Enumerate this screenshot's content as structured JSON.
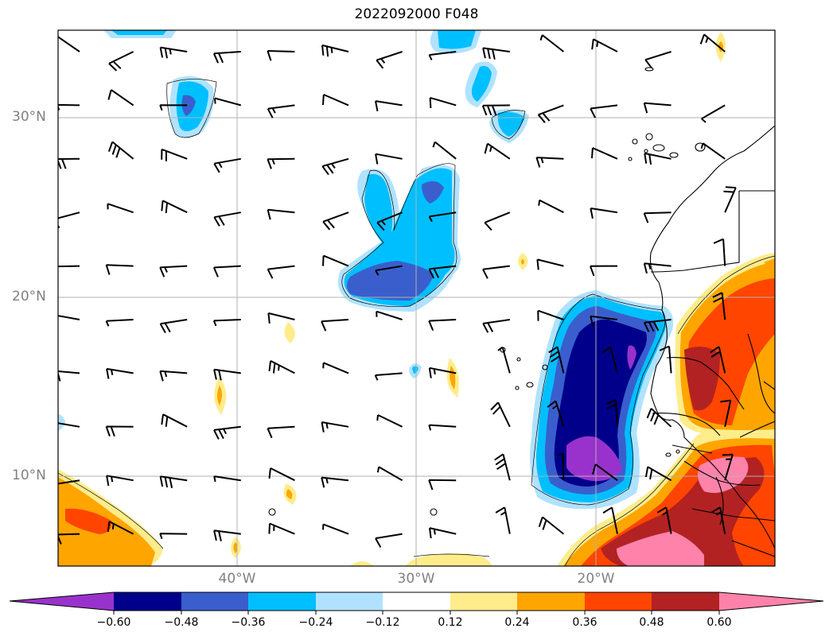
{
  "title": "2022092000 F048",
  "map": {
    "lat_ticks": [
      "30°N",
      "20°N",
      "10°N"
    ],
    "lon_ticks": [
      "40°W",
      "30°W",
      "20°W"
    ],
    "gridlines": true,
    "coastlines": true,
    "wind_barbs": true
  },
  "colorbar": {
    "labels": [
      "−0.60",
      "−0.48",
      "−0.36",
      "−0.24",
      "−0.12",
      "0.12",
      "0.24",
      "0.36",
      "0.48",
      "0.60"
    ],
    "colors": [
      "#9932cc",
      "#00008b",
      "#3a5fcd",
      "#00bfff",
      "#b0e2ff",
      "#ffffff",
      "#ffec8b",
      "#ffa500",
      "#ff4500",
      "#b22222",
      "#ff82ab"
    ],
    "extend": "both"
  }
}
